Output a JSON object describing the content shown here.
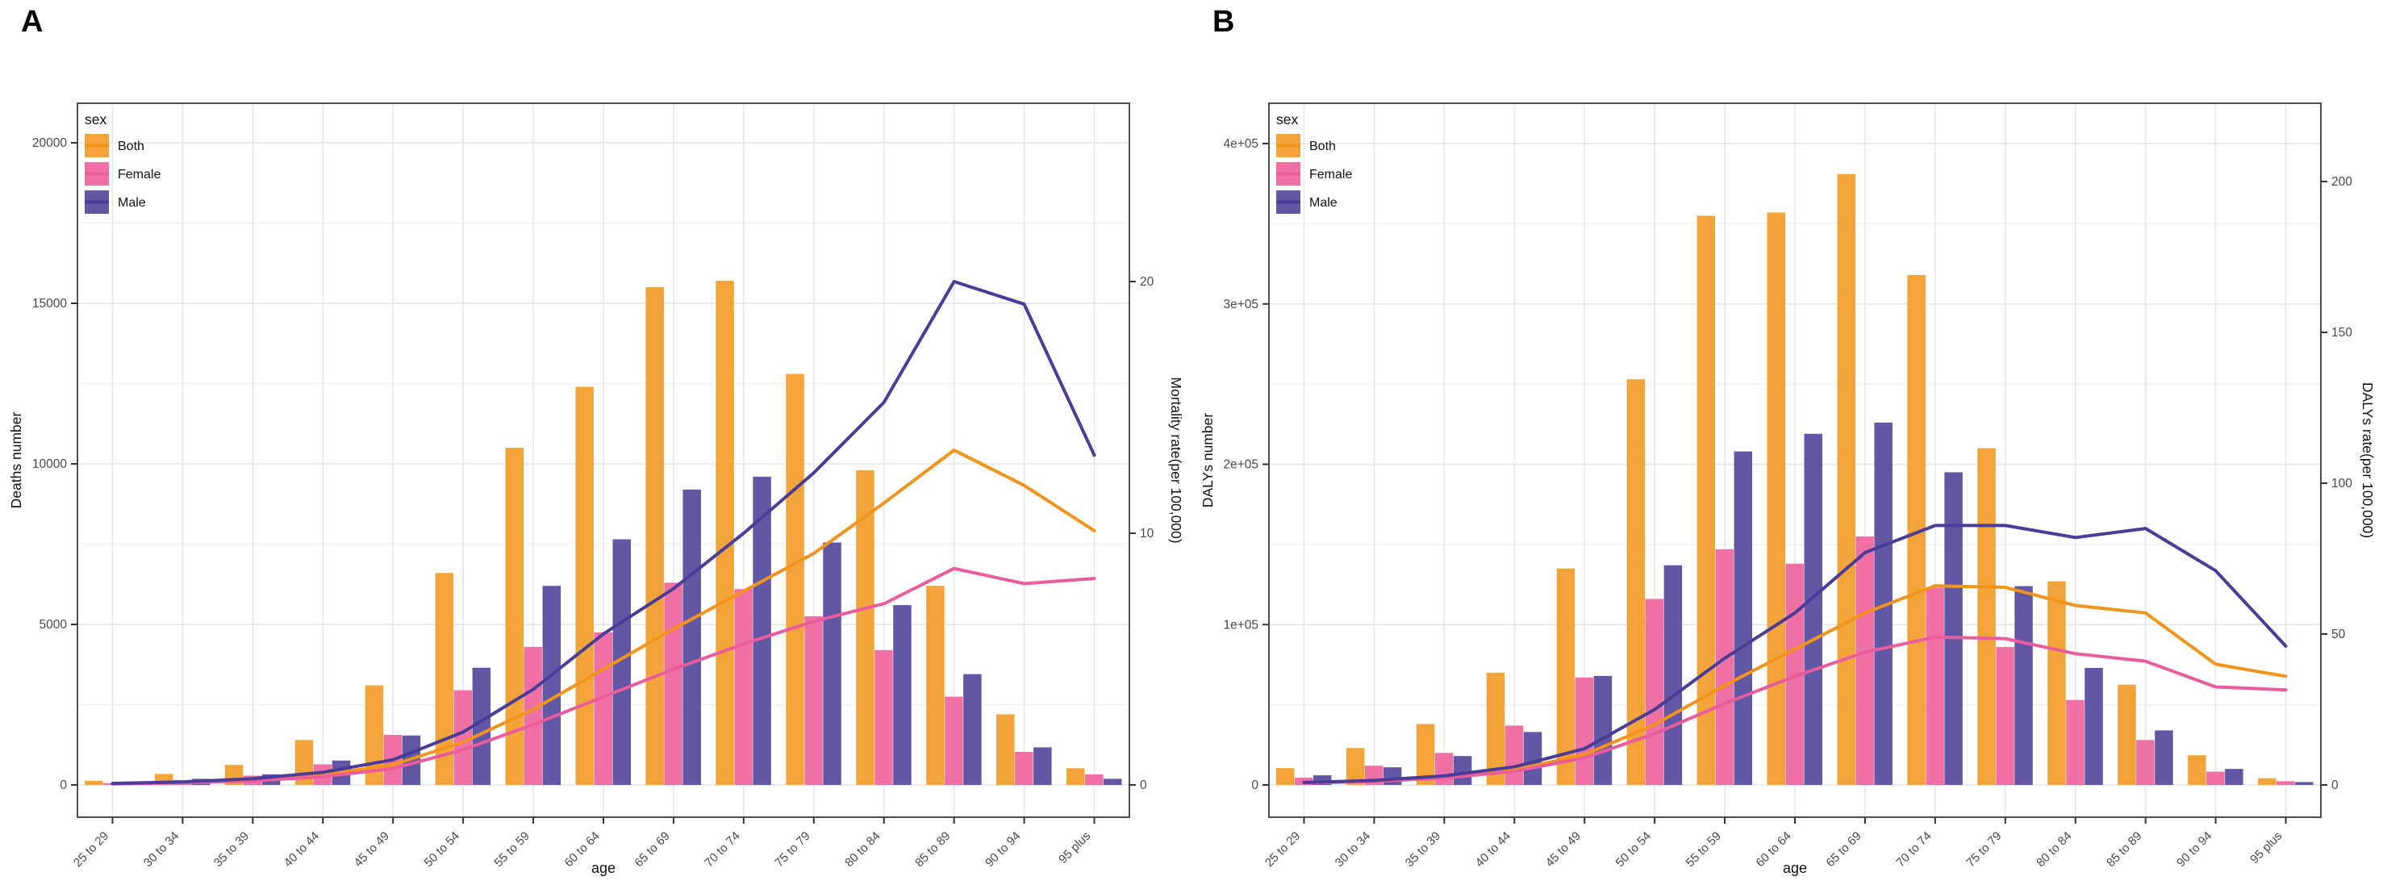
{
  "figure_title": "",
  "colors": {
    "both_bar": "#F2A43A",
    "both_line": "#F2941B",
    "female_bar": "#EF70A5",
    "female_line": "#EA5C9C",
    "male_bar": "#6257A5",
    "male_line": "#4B3C99",
    "grid_major": "#E8E8E8",
    "grid_minor": "#F3F3F3",
    "panel_border": "#4F4F4F",
    "tick_mark": "#333333",
    "tick_label": "#4A4A4A",
    "axis_title": "#111111"
  },
  "legend": {
    "title": "sex",
    "items": [
      {
        "label": "Both",
        "fill": "#F2A43A",
        "line": "#F2941B"
      },
      {
        "label": "Female",
        "fill": "#EF70A5",
        "line": "#EA5C9C"
      },
      {
        "label": "Male",
        "fill": "#6257A5",
        "line": "#4B3C99"
      }
    ]
  },
  "chart_data": [
    {
      "panel_label": "A",
      "type": "bar+line",
      "xlabel": "age",
      "ylabel_left": "Deaths number",
      "ylabel_right": "Mortality rate(per 100,000)",
      "legend_title": "sex",
      "categories": [
        "25 to 29",
        "30 to 34",
        "35 to 39",
        "40 to 44",
        "45 to 49",
        "50 to 54",
        "55 to 59",
        "60 to 64",
        "65 to 69",
        "70 to 74",
        "75 to 79",
        "80 to 84",
        "85 to 89",
        "90 to 94",
        "95 plus"
      ],
      "y_left_ticks": {
        "values": [
          0,
          5000,
          10000,
          15000,
          20000
        ],
        "labels": [
          "0",
          "5000",
          "10000",
          "15000",
          "20000"
        ]
      },
      "y_right_ticks": {
        "values": [
          0,
          10,
          20
        ],
        "labels": [
          "0",
          "10",
          "20"
        ]
      },
      "bar_series": [
        {
          "name": "Both",
          "color": "#F2A43A",
          "values": [
            130,
            340,
            620,
            1400,
            3100,
            6600,
            10500,
            12400,
            15500,
            15700,
            12800,
            9800,
            6200,
            2200,
            520
          ]
        },
        {
          "name": "Female",
          "color": "#EF70A5",
          "values": [
            55,
            150,
            290,
            640,
            1560,
            2950,
            4300,
            4750,
            6300,
            6100,
            5250,
            4200,
            2750,
            1030,
            330
          ]
        },
        {
          "name": "Male",
          "color": "#6257A5",
          "values": [
            75,
            190,
            330,
            760,
            1540,
            3650,
            6200,
            7650,
            9200,
            9600,
            7550,
            5600,
            3450,
            1170,
            190
          ]
        }
      ],
      "line_series": [
        {
          "name": "Both",
          "color": "#F2941B",
          "values": [
            0.05,
            0.1,
            0.2,
            0.4,
            0.8,
            1.7,
            3.0,
            4.6,
            6.2,
            7.7,
            9.2,
            11.2,
            13.3,
            11.9,
            10.1
          ]
        },
        {
          "name": "Female",
          "color": "#EA5C9C",
          "values": [
            0.04,
            0.09,
            0.16,
            0.33,
            0.65,
            1.4,
            2.4,
            3.5,
            4.6,
            5.6,
            6.5,
            7.2,
            8.6,
            8.0,
            8.2
          ]
        },
        {
          "name": "Male",
          "color": "#4B3C99",
          "values": [
            0.06,
            0.12,
            0.25,
            0.5,
            1.0,
            2.1,
            3.8,
            6.0,
            7.8,
            10.0,
            12.4,
            15.2,
            20.0,
            19.1,
            13.1
          ]
        }
      ]
    },
    {
      "panel_label": "B",
      "type": "bar+line",
      "xlabel": "age",
      "ylabel_left": "DALYs number",
      "ylabel_right": "DALYs rate(per 100,000)",
      "legend_title": "sex",
      "categories": [
        "25 to 29",
        "30 to 34",
        "35 to 39",
        "40 to 44",
        "45 to 49",
        "50 to 54",
        "55 to 59",
        "60 to 64",
        "65 to 69",
        "70 to 74",
        "75 to 79",
        "80 to 84",
        "85 to 89",
        "90 to 94",
        "95 plus"
      ],
      "y_left_ticks": {
        "values": [
          0,
          100000,
          200000,
          300000,
          400000
        ],
        "labels": [
          "0",
          "1e+05",
          "2e+05",
          "3e+05",
          "4e+05"
        ]
      },
      "y_right_ticks": {
        "values": [
          0,
          50,
          100,
          150,
          200
        ],
        "labels": [
          "0",
          "50",
          "100",
          "150",
          "200"
        ]
      },
      "bar_series": [
        {
          "name": "Both",
          "color": "#F2A43A",
          "values": [
            10500,
            23000,
            38000,
            70000,
            135000,
            253000,
            355000,
            357000,
            381000,
            318000,
            210000,
            127000,
            62500,
            18500,
            4200
          ]
        },
        {
          "name": "Female",
          "color": "#EF70A5",
          "values": [
            4500,
            12000,
            20000,
            37000,
            67000,
            116000,
            147000,
            138000,
            155000,
            123000,
            86000,
            53000,
            28000,
            8300,
            2300
          ]
        },
        {
          "name": "Male",
          "color": "#6257A5",
          "values": [
            6000,
            11000,
            18000,
            33000,
            68000,
            137000,
            208000,
            219000,
            226000,
            195000,
            124000,
            73000,
            34000,
            10000,
            1800
          ]
        }
      ],
      "line_series": [
        {
          "name": "Both",
          "color": "#F2941B",
          "values": [
            0.7,
            1.4,
            2.6,
            5,
            10,
            20,
            33,
            45,
            57,
            66,
            65.5,
            59.5,
            57,
            40,
            36
          ]
        },
        {
          "name": "Female",
          "color": "#EA5C9C",
          "values": [
            0.6,
            1.2,
            2.3,
            4.5,
            9,
            17,
            27,
            36,
            44,
            49,
            48.5,
            43.5,
            41,
            32.5,
            31.5
          ]
        },
        {
          "name": "Male",
          "color": "#4B3C99",
          "values": [
            0.8,
            1.5,
            3,
            6,
            12,
            25,
            42,
            57,
            77,
            86,
            86,
            82,
            85,
            71,
            46
          ]
        }
      ]
    }
  ]
}
